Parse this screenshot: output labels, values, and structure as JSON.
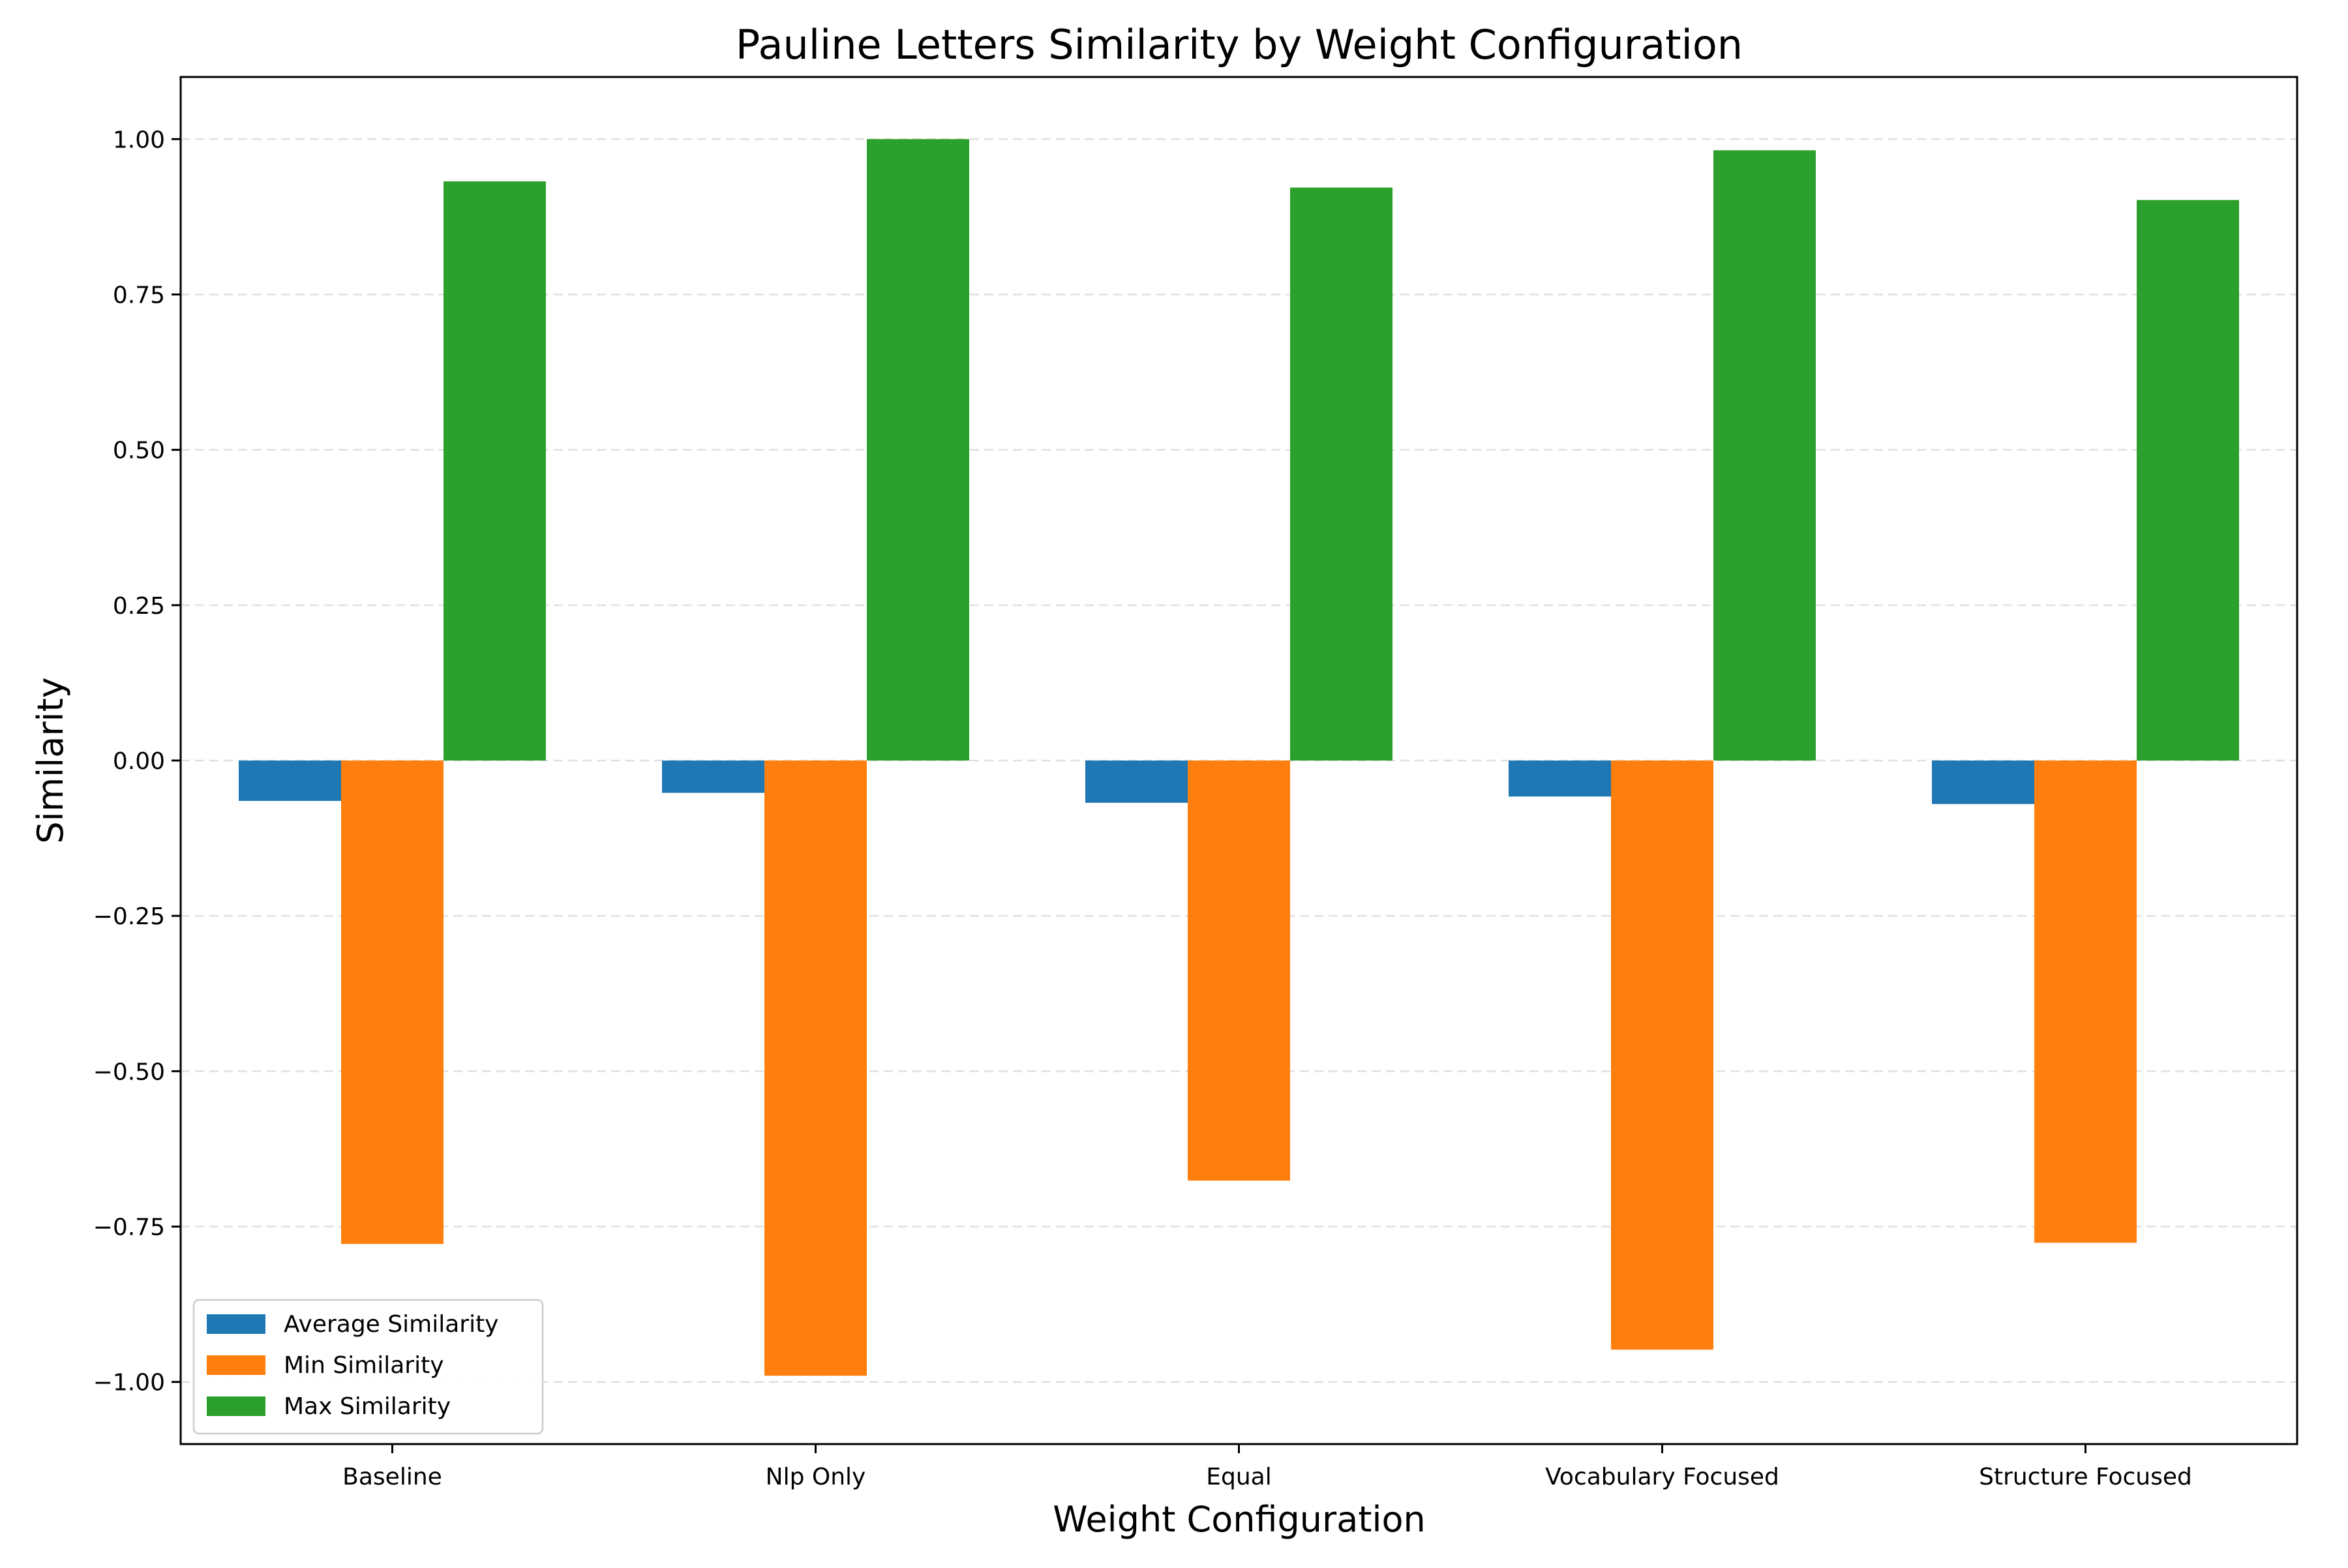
{
  "chart_data": {
    "type": "bar",
    "title": "Pauline Letters Similarity by Weight Configuration",
    "xlabel": "Weight Configuration",
    "ylabel": "Similarity",
    "categories": [
      "Baseline",
      "Nlp Only",
      "Equal",
      "Vocabulary Focused",
      "Structure Focused"
    ],
    "series": [
      {
        "name": "Average Similarity",
        "color": "#1f77b4",
        "values": [
          -0.065,
          -0.052,
          -0.068,
          -0.058,
          -0.07
        ]
      },
      {
        "name": "Min Similarity",
        "color": "#ff7f0e",
        "values": [
          -0.778,
          -0.99,
          -0.676,
          -0.948,
          -0.776
        ]
      },
      {
        "name": "Max Similarity",
        "color": "#2ca02c",
        "values": [
          0.932,
          1.0,
          0.922,
          0.982,
          0.902
        ]
      }
    ],
    "ylim": [
      -1.1,
      1.1
    ],
    "yticks": [
      -1.0,
      -0.75,
      -0.5,
      -0.25,
      0.0,
      0.25,
      0.5,
      0.75,
      1.0
    ],
    "ytick_labels": [
      "−1.00",
      "−0.75",
      "−0.50",
      "−0.25",
      "0.00",
      "0.25",
      "0.50",
      "0.75",
      "1.00"
    ],
    "grid": true,
    "legend_position": "lower-left"
  }
}
